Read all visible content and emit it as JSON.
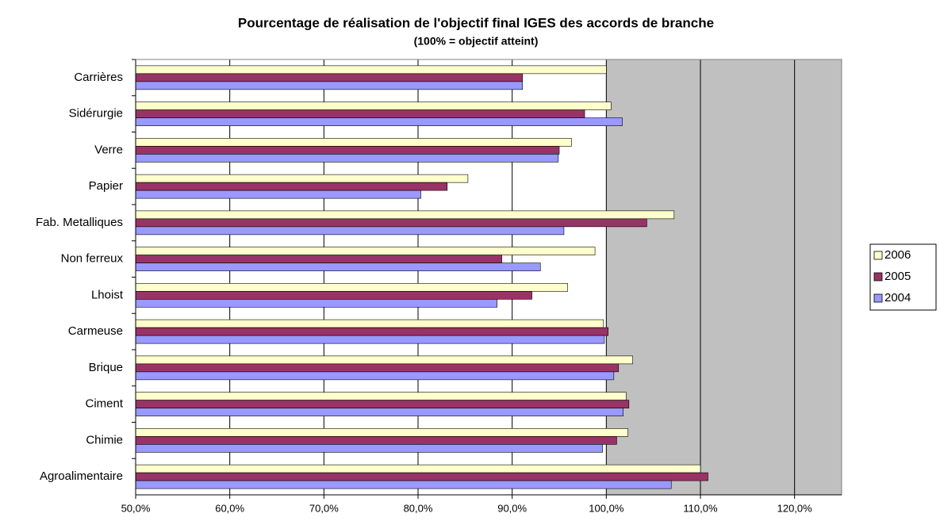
{
  "chart_data": {
    "type": "hbar",
    "title": "Pourcentage de réalisation de l'objectif final IGES des accords de branche",
    "subtitle": "(100% = objectif atteint)",
    "categories": [
      "Carrières",
      "Sidérurgie",
      "Verre",
      "Papier",
      "Fab. Metalliques",
      "Non ferreux",
      "Lhoist",
      "Carmeuse",
      "Brique",
      "Ciment",
      "Chimie",
      "Agroalimentaire"
    ],
    "series": [
      {
        "name": "2006",
        "color": "#ffffcc",
        "values": [
          100.0,
          100.5,
          96.3,
          85.3,
          107.2,
          98.8,
          95.9,
          99.7,
          102.8,
          102.1,
          102.3,
          110.0
        ]
      },
      {
        "name": "2005",
        "color": "#993366",
        "values": [
          91.1,
          97.7,
          95.0,
          83.1,
          104.3,
          88.9,
          92.1,
          100.2,
          101.3,
          102.4,
          101.1,
          110.8
        ]
      },
      {
        "name": "2004",
        "color": "#9999ff",
        "values": [
          91.1,
          101.7,
          94.9,
          80.3,
          95.5,
          93.0,
          88.4,
          99.8,
          100.8,
          101.8,
          99.6,
          106.9
        ]
      }
    ],
    "xlim": [
      50,
      125
    ],
    "xticks": [
      {
        "value": 50,
        "label": "50,0%"
      },
      {
        "value": 60,
        "label": "60,0%"
      },
      {
        "value": 70,
        "label": "70,0%"
      },
      {
        "value": 80,
        "label": "80,0%"
      },
      {
        "value": 90,
        "label": "90,0%"
      },
      {
        "value": 100,
        "label": "100,0%"
      },
      {
        "value": 110,
        "label": "110,0%"
      },
      {
        "value": 120,
        "label": "120,0%"
      }
    ],
    "grid": true
  }
}
